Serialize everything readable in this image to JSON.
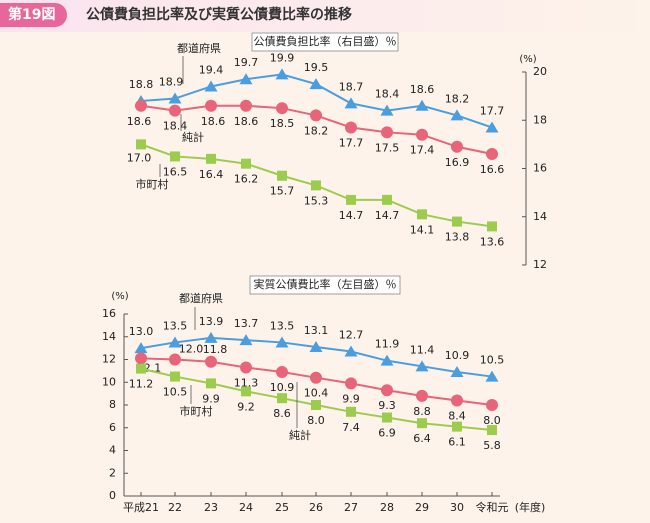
{
  "figure": {
    "label": "第19図",
    "title": "公債費負担比率及び実質公債費比率の推移"
  },
  "colors": {
    "prefecture": "#4a9ee0",
    "net": "#e86478",
    "municipal": "#9ccc4e",
    "axis": "#555555",
    "text": "#222222"
  },
  "chart_data": [
    {
      "type": "line",
      "title": "公債費負担比率（右目盛）％",
      "ylabel": "(%)",
      "y_axis_side": "right",
      "ylim": [
        12,
        20
      ],
      "yticks": [
        12,
        14,
        16,
        18,
        20
      ],
      "categories": [
        "平成21",
        "22",
        "23",
        "24",
        "25",
        "26",
        "27",
        "28",
        "29",
        "30",
        "令和元"
      ],
      "series": [
        {
          "name": "都道府県",
          "marker": "triangle",
          "color": "#4a9ee0",
          "values": [
            18.8,
            18.9,
            19.4,
            19.7,
            19.9,
            19.5,
            18.7,
            18.4,
            18.6,
            18.2,
            17.7
          ]
        },
        {
          "name": "純計",
          "marker": "circle",
          "color": "#e86478",
          "values": [
            18.6,
            18.4,
            18.6,
            18.6,
            18.5,
            18.2,
            17.7,
            17.5,
            17.4,
            16.9,
            16.6
          ]
        },
        {
          "name": "市町村",
          "marker": "square",
          "color": "#9ccc4e",
          "values": [
            17.0,
            16.5,
            16.4,
            16.2,
            15.7,
            15.3,
            14.7,
            14.7,
            14.1,
            13.8,
            13.6
          ]
        }
      ]
    },
    {
      "type": "line",
      "title": "実質公債費比率（左目盛）％",
      "ylabel": "(%)",
      "y_axis_side": "left",
      "ylim": [
        0,
        16
      ],
      "yticks": [
        0,
        2,
        4,
        6,
        8,
        10,
        12,
        14,
        16
      ],
      "xlabel": "(年度)",
      "categories": [
        "平成21",
        "22",
        "23",
        "24",
        "25",
        "26",
        "27",
        "28",
        "29",
        "30",
        "令和元"
      ],
      "series": [
        {
          "name": "都道府県",
          "marker": "triangle",
          "color": "#4a9ee0",
          "values": [
            13.0,
            13.5,
            13.9,
            13.7,
            13.5,
            13.1,
            12.7,
            11.9,
            11.4,
            10.9,
            10.5
          ]
        },
        {
          "name": "純計",
          "marker": "circle",
          "color": "#e86478",
          "values": [
            12.1,
            12.0,
            11.8,
            11.3,
            10.9,
            10.4,
            9.9,
            9.3,
            8.8,
            8.4,
            8.0
          ]
        },
        {
          "name": "市町村",
          "marker": "square",
          "color": "#9ccc4e",
          "values": [
            11.2,
            10.5,
            9.9,
            9.2,
            8.6,
            8.0,
            7.4,
            6.9,
            6.4,
            6.1,
            5.8
          ]
        }
      ]
    }
  ]
}
